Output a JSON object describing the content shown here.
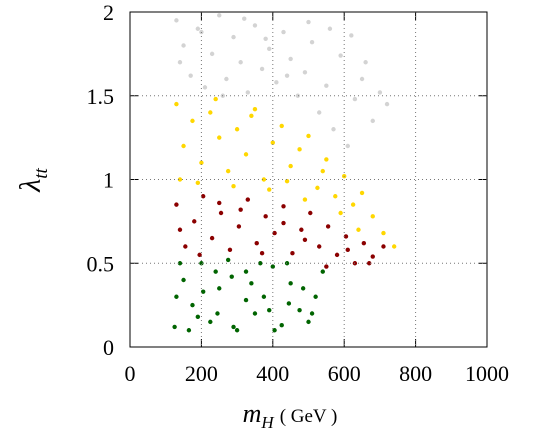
{
  "chart_data": {
    "type": "scatter",
    "xlabel": {
      "symbol": "m",
      "subscript": "H",
      "unit": "( GeV )"
    },
    "ylabel": {
      "symbol": "λ",
      "subscript": "tt"
    },
    "xlim": [
      0,
      1000
    ],
    "xticks": [
      0,
      200,
      400,
      600,
      800,
      1000
    ],
    "ylim": [
      0,
      2
    ],
    "yticks": [
      0,
      0.5,
      1,
      1.5,
      2
    ],
    "grid": true,
    "series": [
      {
        "color": "#d3d3d3",
        "x": [
          130,
          150,
          170,
          190,
          210,
          230,
          250,
          270,
          290,
          310,
          330,
          350,
          370,
          390,
          410,
          430,
          450,
          470,
          490,
          510,
          530,
          550,
          570,
          590,
          610,
          630,
          650,
          680,
          700,
          720,
          140,
          200,
          260,
          320,
          380,
          440,
          500,
          560,
          620,
          660
        ],
        "y": [
          1.95,
          1.8,
          1.62,
          1.9,
          1.55,
          1.75,
          1.98,
          1.6,
          1.85,
          1.7,
          1.52,
          1.92,
          1.66,
          1.78,
          1.58,
          1.88,
          1.72,
          1.5,
          1.64,
          1.82,
          1.4,
          1.56,
          1.3,
          1.74,
          1.2,
          1.48,
          1.6,
          1.35,
          1.52,
          1.45,
          1.7,
          1.88,
          1.5,
          1.96,
          1.84,
          1.62,
          1.94,
          1.9,
          1.86,
          1.7
        ]
      },
      {
        "color": "#ffd700",
        "x": [
          130,
          150,
          175,
          200,
          225,
          250,
          275,
          300,
          325,
          350,
          375,
          400,
          425,
          450,
          475,
          500,
          525,
          550,
          575,
          600,
          625,
          650,
          680,
          710,
          740,
          140,
          190,
          240,
          290,
          340,
          390,
          440,
          490,
          540,
          590,
          640
        ],
        "y": [
          1.45,
          1.2,
          1.35,
          1.1,
          1.4,
          1.25,
          1.05,
          1.3,
          1.15,
          1.42,
          1.0,
          1.22,
          1.32,
          1.08,
          1.18,
          1.26,
          0.95,
          1.12,
          0.9,
          1.02,
          0.85,
          0.92,
          0.78,
          0.68,
          0.6,
          1.0,
          0.98,
          1.48,
          0.96,
          1.38,
          0.94,
          0.99,
          0.88,
          1.05,
          0.8,
          0.7
        ]
      },
      {
        "color": "#8b0000",
        "x": [
          130,
          155,
          180,
          205,
          230,
          255,
          280,
          305,
          330,
          355,
          380,
          405,
          430,
          455,
          480,
          505,
          530,
          555,
          580,
          605,
          630,
          655,
          680,
          710,
          140,
          195,
          250,
          310,
          370,
          430,
          490,
          550,
          610,
          670
        ],
        "y": [
          0.85,
          0.6,
          0.75,
          0.9,
          0.65,
          0.8,
          0.58,
          0.72,
          0.88,
          0.62,
          0.78,
          0.68,
          0.84,
          0.56,
          0.7,
          0.8,
          0.6,
          0.72,
          0.55,
          0.66,
          0.5,
          0.62,
          0.54,
          0.6,
          0.7,
          0.55,
          0.86,
          0.82,
          0.56,
          0.74,
          0.64,
          0.48,
          0.58,
          0.5
        ]
      },
      {
        "color": "#006400",
        "x": [
          125,
          150,
          175,
          200,
          225,
          250,
          275,
          300,
          325,
          350,
          375,
          400,
          425,
          450,
          475,
          500,
          520,
          540,
          130,
          165,
          205,
          245,
          285,
          325,
          365,
          405,
          445,
          485,
          510,
          140,
          190,
          240,
          290,
          340,
          390,
          440
        ],
        "y": [
          0.12,
          0.4,
          0.25,
          0.5,
          0.15,
          0.35,
          0.52,
          0.1,
          0.45,
          0.2,
          0.3,
          0.48,
          0.13,
          0.38,
          0.22,
          0.15,
          0.3,
          0.45,
          0.3,
          0.1,
          0.33,
          0.2,
          0.42,
          0.28,
          0.5,
          0.1,
          0.26,
          0.35,
          0.2,
          0.5,
          0.18,
          0.45,
          0.12,
          0.38,
          0.22,
          0.5
        ]
      }
    ]
  }
}
